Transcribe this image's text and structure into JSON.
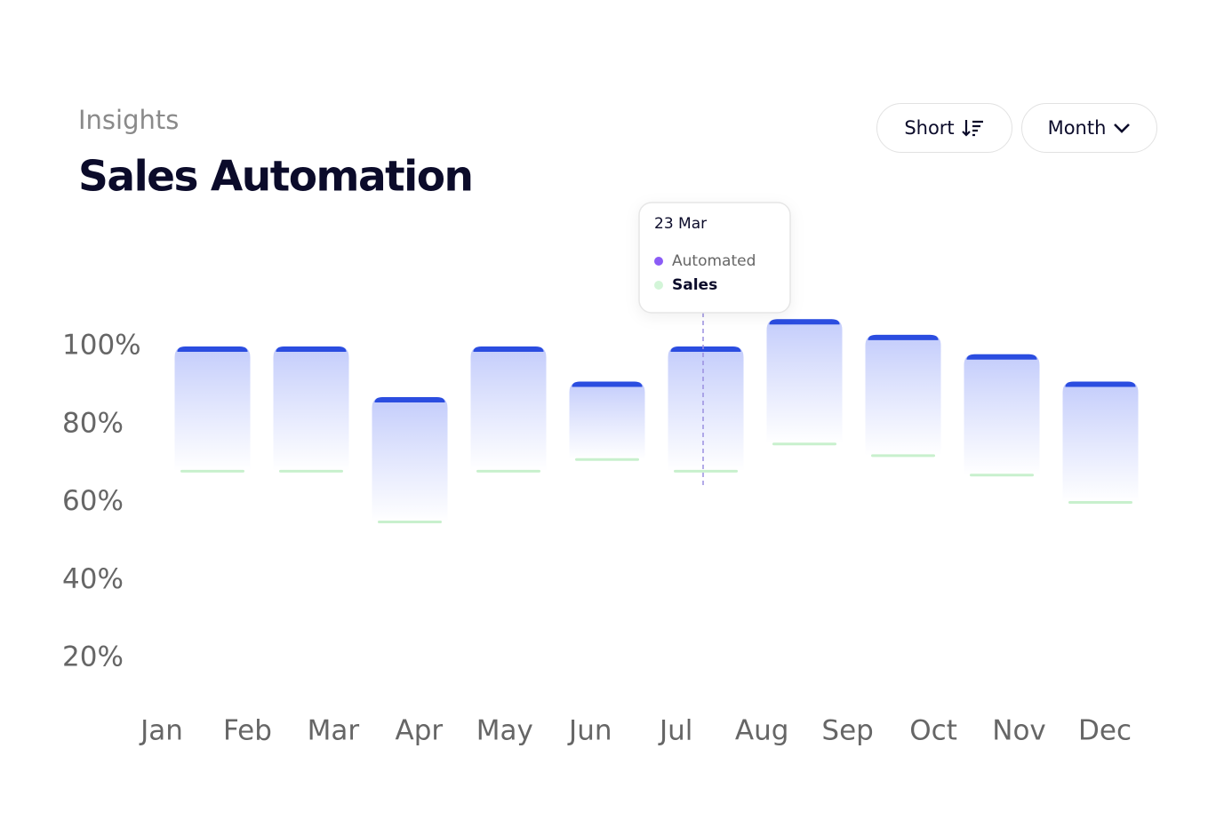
{
  "header": {
    "eyebrow": "Insights",
    "title": "Sales Automation"
  },
  "controls": {
    "sort": "Short",
    "period": "Month"
  },
  "tooltip": {
    "date": "23 Mar",
    "items": [
      {
        "name": "Automated",
        "color": "#8b5cf6"
      },
      {
        "name": "Sales",
        "color": "#d3f5d8"
      }
    ]
  },
  "chart_data": {
    "type": "floating-bar",
    "x_labels": [
      "Jan",
      "Feb",
      "Mar",
      "Apr",
      "May",
      "Jun",
      "Jul",
      "Aug",
      "Sep",
      "Oct",
      "Nov",
      "Dec"
    ],
    "high": [
      100,
      100,
      87,
      100,
      91,
      100,
      107,
      103,
      98,
      91
    ],
    "low": [
      68,
      68,
      55,
      68,
      71,
      68,
      75,
      72,
      67,
      60
    ],
    "color": "#2b4de0",
    "low_color": "#c8f0cd",
    "ylim": [
      20,
      100
    ],
    "yticks": [
      {
        "value": 100,
        "label": "100%"
      },
      {
        "value": 80,
        "label": "80%"
      },
      {
        "value": 60,
        "label": "60%"
      },
      {
        "value": 40,
        "label": "40%"
      },
      {
        "value": 20,
        "label": "20%"
      }
    ]
  }
}
